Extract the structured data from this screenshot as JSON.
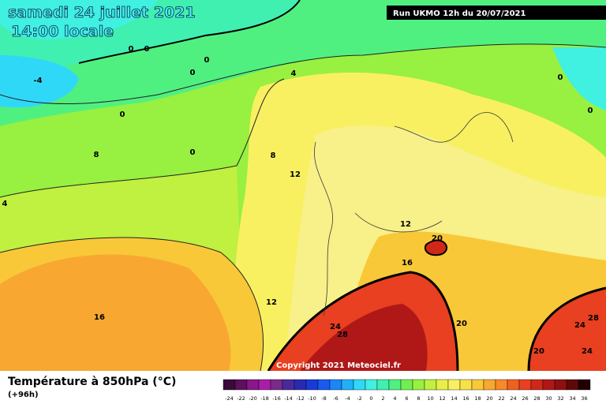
{
  "header": {
    "title": "samedi 24 juillet 2021",
    "subtitle": "14:00 locale",
    "run": "Run UKMO 12h du 20/07/2021"
  },
  "copyright": "Copyright 2021 Meteociel.fr",
  "footer": {
    "title": "Température à 850hPa (°C)",
    "lead": "(+96h)"
  },
  "colorbar": {
    "labels": [
      -24,
      -22,
      -20,
      -18,
      -16,
      -14,
      -12,
      -10,
      -8,
      -6,
      -4,
      -2,
      0,
      2,
      4,
      6,
      8,
      10,
      12,
      14,
      16,
      18,
      20,
      22,
      24,
      26,
      28,
      30,
      32,
      34,
      36
    ],
    "colors": [
      "#3a0a3a",
      "#5e0f5e",
      "#8a168a",
      "#a81ea8",
      "#7a2a8a",
      "#4a2a9a",
      "#2a2ab0",
      "#1a3ad8",
      "#1a5af0",
      "#1a86f8",
      "#20b0f8",
      "#30d8f8",
      "#40f0e0",
      "#40f0b0",
      "#50f080",
      "#70f050",
      "#98f040",
      "#c0f040",
      "#e8f048",
      "#f8f060",
      "#f8e048",
      "#f8c838",
      "#f8a830",
      "#f88828",
      "#f06020",
      "#e84020",
      "#d02818",
      "#b01818",
      "#901010",
      "#600808",
      "#200000"
    ]
  },
  "contour_labels": [
    -4,
    0,
    0,
    0,
    0,
    0,
    0,
    0,
    0,
    4,
    8,
    8,
    4,
    12,
    12,
    12,
    16,
    16,
    20,
    20,
    20,
    24,
    28,
    24,
    28,
    24
  ]
}
